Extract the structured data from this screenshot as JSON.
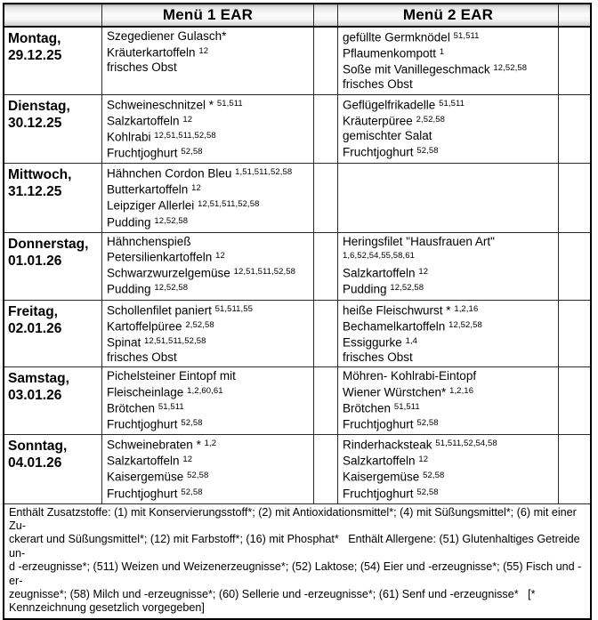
{
  "header": {
    "day_label": "",
    "menu1_label": "Menü 1 EAR",
    "menu2_label": "Menü 2 EAR"
  },
  "rows": [
    {
      "day": "Montag,",
      "date": "29.12.25",
      "menu1": [
        {
          "text": "Szegediener Gulasch*",
          "sup": ""
        },
        {
          "text": "Kräuterkartoffeln",
          "sup": "12"
        },
        {
          "text": "frisches Obst",
          "sup": ""
        }
      ],
      "menu2": [
        {
          "text": "gefüllte Germknödel",
          "sup": "51,511"
        },
        {
          "text": "Pflaumenkompott",
          "sup": "1"
        },
        {
          "text": "Soße mit Vanillegeschmack",
          "sup": "12,52,58"
        },
        {
          "text": "frisches Obst",
          "sup": ""
        }
      ]
    },
    {
      "day": "Dienstag,",
      "date": "30.12.25",
      "menu1": [
        {
          "text": "Schweineschnitzel *",
          "sup": "51,511"
        },
        {
          "text": "Salzkartoffeln",
          "sup": "12"
        },
        {
          "text": "Kohlrabi",
          "sup": "12,51,511,52,58"
        },
        {
          "text": "Fruchtjoghurt",
          "sup": "52,58"
        }
      ],
      "menu2": [
        {
          "text": "Geflügelfrikadelle",
          "sup": "51,511"
        },
        {
          "text": "Kräuterpüree",
          "sup": "2,52,58"
        },
        {
          "text": "gemischter Salat",
          "sup": ""
        },
        {
          "text": "Fruchtjoghurt",
          "sup": "52,58"
        }
      ]
    },
    {
      "day": "Mittwoch,",
      "date": "31.12.25",
      "menu1": [
        {
          "text": "Hähnchen Cordon Bleu",
          "sup": "1,51,511,52,58"
        },
        {
          "text": "Butterkartoffeln",
          "sup": "12"
        },
        {
          "text": "Leipziger Allerlei",
          "sup": "12,51,511,52,58"
        },
        {
          "text": "Pudding",
          "sup": "12,52,58"
        }
      ],
      "menu2": []
    },
    {
      "day": "Donnerstag,",
      "date": "01.01.26",
      "menu1": [
        {
          "text": "Hähnchenspieß",
          "sup": ""
        },
        {
          "text": "Petersilienkartoffeln",
          "sup": "12"
        },
        {
          "text": "Schwarzwurzelgemüse",
          "sup": "12,51,511,52,58"
        },
        {
          "text": "Pudding",
          "sup": "12,52,58"
        }
      ],
      "menu2": [
        {
          "text": "Heringsfilet \"Hausfrauen Art\"",
          "sup": ""
        },
        {
          "text": "",
          "sup": "1,6,52,54,55,58,61"
        },
        {
          "text": "Salzkartoffeln",
          "sup": "12"
        },
        {
          "text": "Pudding",
          "sup": "12,52,58"
        }
      ]
    },
    {
      "day": "Freitag,",
      "date": "02.01.26",
      "menu1": [
        {
          "text": "Schollenfilet paniert",
          "sup": "51,511,55"
        },
        {
          "text": "Kartoffelpüree",
          "sup": "2,52,58"
        },
        {
          "text": "Spinat",
          "sup": "12,51,511,52,58"
        },
        {
          "text": "frisches Obst",
          "sup": ""
        }
      ],
      "menu2": [
        {
          "text": "heiße Fleischwurst *",
          "sup": "1,2,16"
        },
        {
          "text": "Bechamelkartoffeln",
          "sup": "12,52,58"
        },
        {
          "text": "Essiggurke",
          "sup": "1,4"
        },
        {
          "text": "frisches Obst",
          "sup": ""
        }
      ]
    },
    {
      "day": "Samstag,",
      "date": "03.01.26",
      "menu1": [
        {
          "text": "Pichelsteiner Eintopf mit",
          "sup": ""
        },
        {
          "text": "Fleischeinlage",
          "sup": "1,2,60,61"
        },
        {
          "text": "Brötchen",
          "sup": "51,511"
        },
        {
          "text": "Fruchtjoghurt",
          "sup": "52,58"
        }
      ],
      "menu2": [
        {
          "text": "Möhren- Kohlrabi-Eintopf",
          "sup": ""
        },
        {
          "text": "Wiener Würstchen*",
          "sup": "1,2,16"
        },
        {
          "text": "Brötchen",
          "sup": "51,511"
        },
        {
          "text": "Fruchtjoghurt",
          "sup": "52,58"
        }
      ]
    },
    {
      "day": "Sonntag,",
      "date": "04.01.26",
      "menu1": [
        {
          "text": "Schweinebraten *",
          "sup": "1,2"
        },
        {
          "text": "Salzkartoffeln",
          "sup": "12"
        },
        {
          "text": "Kaisergemüse",
          "sup": "52,58"
        },
        {
          "text": "Fruchtjoghurt",
          "sup": "52,58"
        }
      ],
      "menu2": [
        {
          "text": "Rinderhacksteak",
          "sup": "51,511,52,54,58"
        },
        {
          "text": "Salzkartoffeln",
          "sup": "12"
        },
        {
          "text": "Kaisergemüse",
          "sup": "52,58"
        },
        {
          "text": "Fruchtjoghurt",
          "sup": "52,58"
        }
      ]
    }
  ],
  "footer": {
    "lines": [
      "Enthält Zusatzstoffe: (1) mit Konservierungsstoff*; (2) mit Antioxidationsmittel*; (4) mit Süßungsmittel*; (6) mit einer Zu-",
      "ckerart und Süßungsmittel*; (12) mit Farbstoff*; (16) mit Phosphat*   Enthält Allergene: (51) Glutenhaltiges Getreide un-",
      "d -erzeugnisse*; (511) Weizen und Weizenerzeugnisse*; (52) Laktose; (54) Eier und -erzeugnisse*; (55) Fisch und -er-",
      "zeugnisse*; (58) Milch und -erzeugnisse*; (60) Sellerie und -erzeugnisse*; (61) Senf und -erzeugnisse*   [*",
      "Kennzeichnung gesetzlich vorgegeben]"
    ]
  },
  "colors": {
    "text": "#000000",
    "border_outer": "#000000",
    "border_inner": "#2b2b2b",
    "header_shade_top": "#a9a9a9",
    "header_shade_bottom": "#cfcfcf",
    "cell_background": "#ffffff"
  }
}
